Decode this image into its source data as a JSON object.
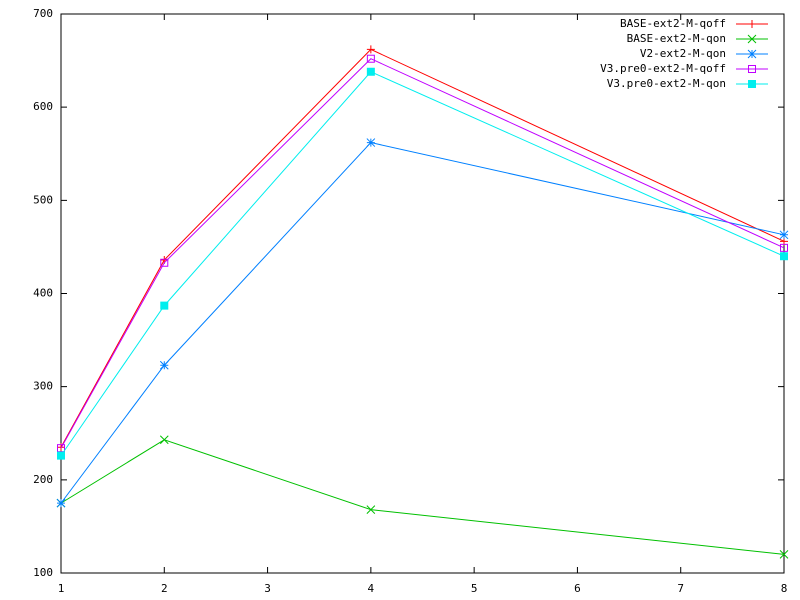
{
  "chart_data": {
    "type": "line",
    "x": [
      1,
      2,
      4,
      8
    ],
    "xlim": [
      1,
      8
    ],
    "xticks": [
      1,
      2,
      3,
      4,
      5,
      6,
      7,
      8
    ],
    "ylim": [
      100,
      700
    ],
    "yticks": [
      100,
      200,
      300,
      400,
      500,
      600,
      700
    ],
    "grid": false,
    "legend": "top-right",
    "series": [
      {
        "name": "BASE-ext2-M-qoff",
        "color": "#ff0000",
        "marker": "plus",
        "values": [
          235,
          436,
          662,
          456
        ]
      },
      {
        "name": "BASE-ext2-M-qon",
        "color": "#00c000",
        "marker": "cross",
        "values": [
          175,
          243,
          168,
          120
        ]
      },
      {
        "name": "V2-ext2-M-qon",
        "color": "#0080ff",
        "marker": "star",
        "values": [
          175,
          323,
          562,
          463
        ]
      },
      {
        "name": "V3.pre0-ext2-M-qoff",
        "color": "#c000ff",
        "marker": "open-square",
        "values": [
          234,
          433,
          652,
          449
        ]
      },
      {
        "name": "V3.pre0-ext2-M-qon",
        "color": "#00eeee",
        "marker": "filled-square",
        "values": [
          226,
          387,
          638,
          440
        ]
      }
    ]
  }
}
